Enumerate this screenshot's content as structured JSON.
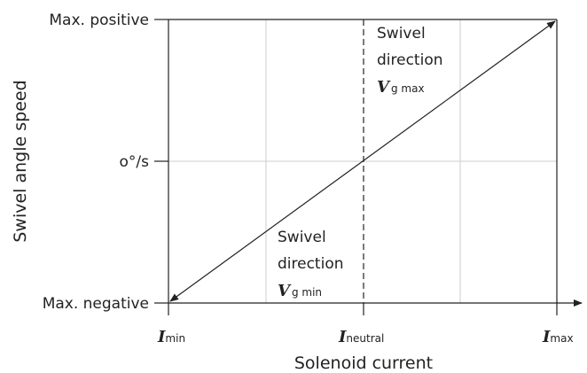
{
  "y_axis": {
    "title": "Swivel angle speed",
    "labels": [
      "Max. positive",
      "o°/s",
      "Max. negative"
    ]
  },
  "x_axis": {
    "title": "Solenoid current",
    "labels": [
      {
        "symbol": "I",
        "subscript": "min"
      },
      {
        "symbol": "I",
        "subscript": "neutral"
      },
      {
        "symbol": "I",
        "subscript": "max"
      }
    ]
  },
  "annotations": [
    {
      "lines": [
        "Swivel",
        "direction"
      ],
      "symbol": "V",
      "subscript": "g max"
    },
    {
      "lines": [
        "Swivel",
        "direction"
      ],
      "symbol": "V",
      "subscript": "g min"
    }
  ]
}
